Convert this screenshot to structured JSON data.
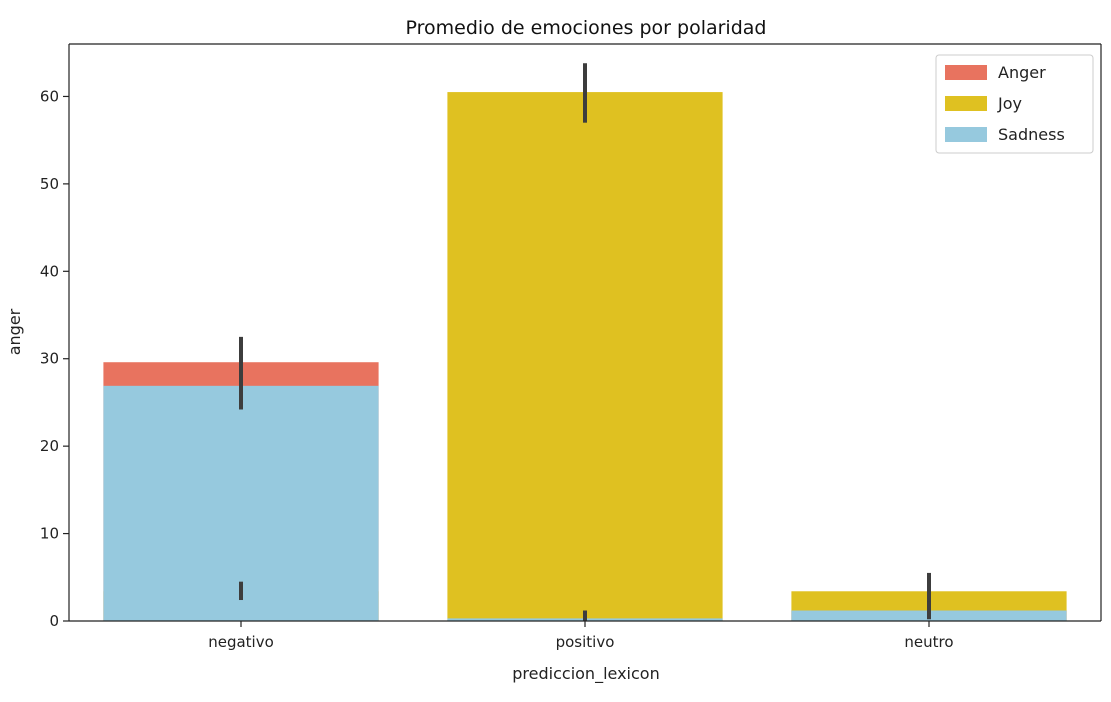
{
  "chart_data": {
    "type": "bar",
    "title": "Promedio de emociones por polaridad",
    "xlabel": "prediccion_lexicon",
    "ylabel": "anger",
    "categories": [
      "negativo",
      "positivo",
      "neutro"
    ],
    "ylim": [
      0,
      66
    ],
    "yticks": [
      0,
      10,
      20,
      30,
      40,
      50,
      60
    ],
    "grid": false,
    "legend_position": "top-right",
    "series": [
      {
        "name": "Anger",
        "color": "#e8735f",
        "values": [
          29.6,
          0.1,
          1.2
        ],
        "error": [
          [
            24.2,
            32.5
          ],
          [
            0,
            0.3
          ],
          [
            0.2,
            2.4
          ]
        ]
      },
      {
        "name": "Joy",
        "color": "#dfc121",
        "values": [
          3.4,
          60.5,
          3.4
        ],
        "error": [
          [
            2.4,
            4.5
          ],
          [
            57.0,
            63.8
          ],
          [
            0.4,
            5.5
          ]
        ]
      },
      {
        "name": "Sadness",
        "color": "#96c9de",
        "values": [
          26.9,
          0.3,
          1.2
        ],
        "error": [
          [
            24.2,
            29.6
          ],
          [
            0.1,
            1.2
          ],
          [
            0.3,
            2.2
          ]
        ]
      }
    ],
    "overlay_order": [
      "Anger",
      "Joy",
      "Sadness"
    ]
  }
}
